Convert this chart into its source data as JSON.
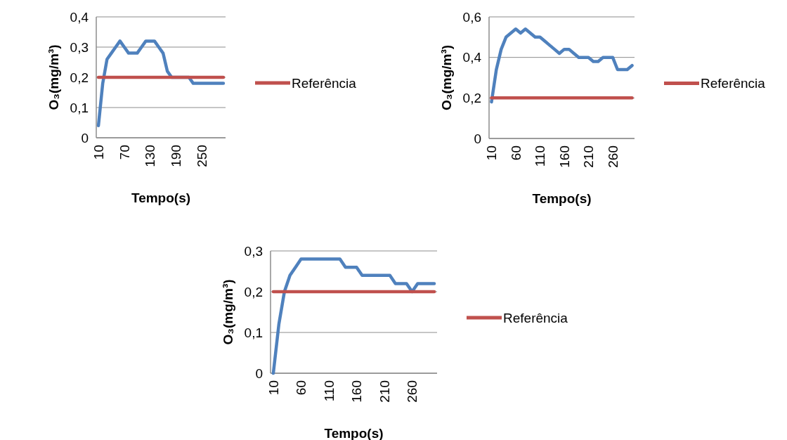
{
  "chart_data": [
    {
      "type": "line",
      "xlabel": "Tempo(s)",
      "ylabel": "O₃(mg/m³)",
      "categories": [
        "10",
        null,
        null,
        null,
        null,
        null,
        "70",
        null,
        null,
        null,
        null,
        null,
        "130",
        null,
        null,
        null,
        null,
        null,
        "190",
        null,
        null,
        null,
        null,
        null,
        "250",
        null,
        null,
        null,
        null,
        null
      ],
      "ylim": [
        0,
        0.4
      ],
      "yticks": [
        {
          "value": 0,
          "label": "0"
        },
        {
          "value": 0.1,
          "label": "0,1"
        },
        {
          "value": 0.2,
          "label": "0,2"
        },
        {
          "value": 0.3,
          "label": "0,3"
        },
        {
          "value": 0.4,
          "label": "0,4"
        }
      ],
      "grid": "y",
      "legend": "right",
      "series": [
        {
          "color": "#4f81bd",
          "values": [
            0.04,
            0.18,
            0.26,
            0.28,
            0.3,
            0.32,
            0.3,
            0.28,
            0.28,
            0.28,
            0.3,
            0.32,
            0.32,
            0.32,
            0.3,
            0.28,
            0.22,
            0.2,
            0.2,
            0.2,
            0.2,
            0.2,
            0.18,
            0.18,
            0.18,
            0.18,
            0.18,
            0.18,
            0.18,
            0.18
          ]
        },
        {
          "name": "Referência",
          "color": "#c0504d",
          "values": [
            0.2,
            0.2,
            0.2,
            0.2,
            0.2,
            0.2,
            0.2,
            0.2,
            0.2,
            0.2,
            0.2,
            0.2,
            0.2,
            0.2,
            0.2,
            0.2,
            0.2,
            0.2,
            0.2,
            0.2,
            0.2,
            0.2,
            0.2,
            0.2,
            0.2,
            0.2,
            0.2,
            0.2,
            0.2,
            0.2
          ]
        }
      ]
    },
    {
      "type": "line",
      "xlabel": "Tempo(s)",
      "ylabel": "O₃(mg/m³)",
      "categories": [
        "10",
        null,
        null,
        null,
        null,
        "60",
        null,
        null,
        null,
        null,
        "110",
        null,
        null,
        null,
        null,
        "160",
        null,
        null,
        null,
        null,
        "210",
        null,
        null,
        null,
        null,
        "260",
        null,
        null,
        null,
        null
      ],
      "ylim": [
        0,
        0.6
      ],
      "yticks": [
        {
          "value": 0,
          "label": "0"
        },
        {
          "value": 0.2,
          "label": "0,2"
        },
        {
          "value": 0.4,
          "label": "0,4"
        },
        {
          "value": 0.6,
          "label": "0,6"
        }
      ],
      "grid": "y",
      "legend": "right",
      "series": [
        {
          "color": "#4f81bd",
          "values": [
            0.18,
            0.34,
            0.44,
            0.5,
            0.52,
            0.54,
            0.52,
            0.54,
            0.52,
            0.5,
            0.5,
            0.48,
            0.46,
            0.44,
            0.42,
            0.44,
            0.44,
            0.42,
            0.4,
            0.4,
            0.4,
            0.38,
            0.38,
            0.4,
            0.4,
            0.4,
            0.34,
            0.34,
            0.34,
            0.36
          ]
        },
        {
          "name": "Referência",
          "color": "#c0504d",
          "values": [
            0.2,
            0.2,
            0.2,
            0.2,
            0.2,
            0.2,
            0.2,
            0.2,
            0.2,
            0.2,
            0.2,
            0.2,
            0.2,
            0.2,
            0.2,
            0.2,
            0.2,
            0.2,
            0.2,
            0.2,
            0.2,
            0.2,
            0.2,
            0.2,
            0.2,
            0.2,
            0.2,
            0.2,
            0.2,
            0.2
          ]
        }
      ]
    },
    {
      "type": "line",
      "xlabel": "Tempo(s)",
      "ylabel": "O₃(mg/m³)",
      "categories": [
        "10",
        null,
        null,
        null,
        null,
        "60",
        null,
        null,
        null,
        null,
        "110",
        null,
        null,
        null,
        null,
        "160",
        null,
        null,
        null,
        null,
        "210",
        null,
        null,
        null,
        null,
        "260",
        null,
        null,
        null,
        null
      ],
      "ylim": [
        0,
        0.3
      ],
      "yticks": [
        {
          "value": 0,
          "label": "0"
        },
        {
          "value": 0.1,
          "label": "0,1"
        },
        {
          "value": 0.2,
          "label": "0,2"
        },
        {
          "value": 0.3,
          "label": "0,3"
        }
      ],
      "grid": "y",
      "legend": "right",
      "series": [
        {
          "color": "#4f81bd",
          "values": [
            0,
            0.12,
            0.2,
            0.24,
            0.26,
            0.28,
            0.28,
            0.28,
            0.28,
            0.28,
            0.28,
            0.28,
            0.28,
            0.26,
            0.26,
            0.26,
            0.24,
            0.24,
            0.24,
            0.24,
            0.24,
            0.24,
            0.22,
            0.22,
            0.22,
            0.2,
            0.22,
            0.22,
            0.22,
            0.22
          ]
        },
        {
          "name": "Referência",
          "color": "#c0504d",
          "values": [
            0.2,
            0.2,
            0.2,
            0.2,
            0.2,
            0.2,
            0.2,
            0.2,
            0.2,
            0.2,
            0.2,
            0.2,
            0.2,
            0.2,
            0.2,
            0.2,
            0.2,
            0.2,
            0.2,
            0.2,
            0.2,
            0.2,
            0.2,
            0.2,
            0.2,
            0.2,
            0.2,
            0.2,
            0.2,
            0.2
          ]
        }
      ]
    }
  ]
}
